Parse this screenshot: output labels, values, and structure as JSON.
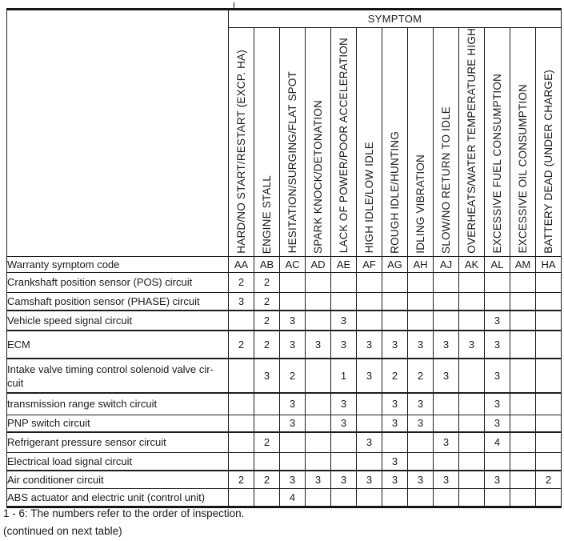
{
  "header": {
    "symptom_label": "SYMPTOM"
  },
  "warranty_row": {
    "label": "Warranty symptom code"
  },
  "columns": [
    {
      "label": "HARD/NO START/RESTART (EXCP. HA)",
      "code": "AA"
    },
    {
      "label": "ENGINE STALL",
      "code": "AB"
    },
    {
      "label": "HESITATION/SURGING/FLAT SPOT",
      "code": "AC"
    },
    {
      "label": "SPARK KNOCK/DETONATION",
      "code": "AD"
    },
    {
      "label": "LACK OF POWER/POOR ACCELERATION",
      "code": "AE"
    },
    {
      "label": "HIGH IDLE/LOW IDLE",
      "code": "AF"
    },
    {
      "label": "ROUGH IDLE/HUNTING",
      "code": "AG"
    },
    {
      "label": "IDLING VIBRATION",
      "code": "AH"
    },
    {
      "label": "SLOW/NO RETURN TO IDLE",
      "code": "AJ"
    },
    {
      "label": "OVERHEATS/WATER TEMPERATURE HIGH",
      "code": "AK"
    },
    {
      "label": "EXCESSIVE FUEL CONSUMPTION",
      "code": "AL"
    },
    {
      "label": "EXCESSIVE OIL CONSUMPTION",
      "code": "AM"
    },
    {
      "label": "BATTERY DEAD (UNDER CHARGE)",
      "code": "HA"
    }
  ],
  "rows": [
    {
      "label": "Crankshaft position sensor (POS) circuit",
      "values": [
        "2",
        "2",
        "",
        "",
        "",
        "",
        "",
        "",
        "",
        "",
        "",
        "",
        ""
      ]
    },
    {
      "label": "Camshaft position sensor (PHASE) circuit",
      "values": [
        "3",
        "2",
        "",
        "",
        "",
        "",
        "",
        "",
        "",
        "",
        "",
        "",
        ""
      ]
    },
    {
      "label": "Vehicle speed signal circuit",
      "values": [
        "",
        "2",
        "3",
        "",
        "3",
        "",
        "",
        "",
        "",
        "",
        "3",
        "",
        ""
      ]
    },
    {
      "label": "ECM",
      "values": [
        "2",
        "2",
        "3",
        "3",
        "3",
        "3",
        "3",
        "3",
        "3",
        "3",
        "3",
        "",
        ""
      ]
    },
    {
      "label": "Intake valve timing control solenoid valve cir-\ncuit",
      "values": [
        "",
        "3",
        "2",
        "",
        "1",
        "3",
        "2",
        "2",
        "3",
        "",
        "3",
        "",
        ""
      ]
    },
    {
      "label": "transmission range switch circuit",
      "values": [
        "",
        "",
        "3",
        "",
        "3",
        "",
        "3",
        "3",
        "",
        "",
        "3",
        "",
        ""
      ]
    },
    {
      "label": "PNP switch circuit",
      "values": [
        "",
        "",
        "3",
        "",
        "3",
        "",
        "3",
        "3",
        "",
        "",
        "3",
        "",
        ""
      ]
    },
    {
      "label": "Refrigerant pressure sensor circuit",
      "values": [
        "",
        "2",
        "",
        "",
        "",
        "3",
        "",
        "",
        "3",
        "",
        "4",
        "",
        ""
      ]
    },
    {
      "label": "Electrical load signal circuit",
      "values": [
        "",
        "",
        "",
        "",
        "",
        "",
        "3",
        "",
        "",
        "",
        "",
        "",
        ""
      ]
    },
    {
      "label": "Air conditioner circuit",
      "values": [
        "2",
        "2",
        "3",
        "3",
        "3",
        "3",
        "3",
        "3",
        "3",
        "",
        "3",
        "",
        "2"
      ]
    },
    {
      "label": "ABS actuator and electric unit (control unit)",
      "values": [
        "",
        "",
        "4",
        "",
        "",
        "",
        "",
        "",
        "",
        "",
        "",
        "",
        ""
      ]
    }
  ],
  "footnotes": [
    "1 - 6: The numbers refer to the order of inspection.",
    "(continued on next table)"
  ]
}
